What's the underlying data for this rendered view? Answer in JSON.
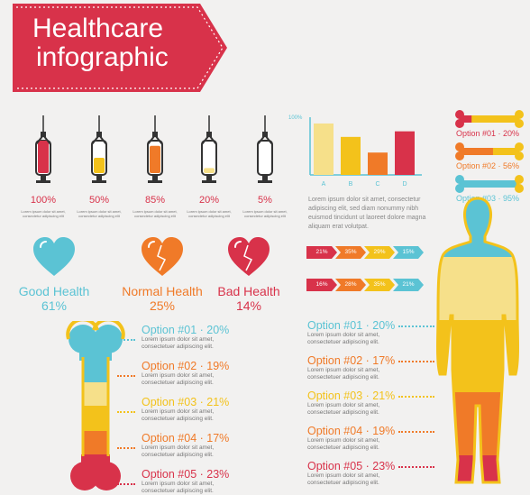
{
  "header": {
    "title_line1": "Healthcare",
    "title_line2": "infographic"
  },
  "syringes": [
    {
      "percent": "100%",
      "fill": 1.0,
      "color": "#d8324a",
      "caption": "Lorem ipsum dolor sit amet, consectetur adipiscing elit"
    },
    {
      "percent": "50%",
      "fill": 0.5,
      "color": "#f3c21b",
      "caption": "Lorem ipsum dolor sit amet, consectetur adipiscing elit"
    },
    {
      "percent": "85%",
      "fill": 0.85,
      "color": "#f07a28",
      "caption": "Lorem ipsum dolor sit amet, consectetur adipiscing elit"
    },
    {
      "percent": "20%",
      "fill": 0.2,
      "color": "#f6e08a",
      "caption": "Lorem ipsum dolor sit amet, consectetur adipiscing elit"
    },
    {
      "percent": "5%",
      "fill": 0.05,
      "color": "#ffffff",
      "caption": "Lorem ipsum dolor sit amet, consectetur adipiscing elit"
    }
  ],
  "hearts": [
    {
      "label": "Good Health",
      "value": "61%",
      "color": "#5bc3d4"
    },
    {
      "label": "Normal Health",
      "value": "25%",
      "color": "#f07a28"
    },
    {
      "label": "Bad Health",
      "value": "14%",
      "color": "#d8324a"
    }
  ],
  "chart_data": {
    "type": "bar",
    "categories": [
      "A",
      "B",
      "C",
      "D"
    ],
    "values": [
      92,
      68,
      40,
      78
    ],
    "colors": [
      "#f6e08a",
      "#f3c21b",
      "#f07a28",
      "#d8324a"
    ],
    "ylabel_top": "100%",
    "ylim": [
      0,
      100
    ]
  },
  "chart_text": "Lorem ipsum dolor sit amet, consectetur adipiscing elit, sed diam nonummy nibh euismod tincidunt ut laoreet dolore magna aliquam erat volutpat.",
  "chevron_rows": [
    [
      {
        "label": "21%",
        "color": "#d8324a"
      },
      {
        "label": "35%",
        "color": "#f07a28"
      },
      {
        "label": "29%",
        "color": "#f3c21b"
      },
      {
        "label": "15%",
        "color": "#5bc3d4"
      }
    ],
    [
      {
        "label": "16%",
        "color": "#d8324a"
      },
      {
        "label": "28%",
        "color": "#f07a28"
      },
      {
        "label": "35%",
        "color": "#f3c21b"
      },
      {
        "label": "21%",
        "color": "#5bc3d4"
      }
    ]
  ],
  "bone_legend": [
    {
      "label": "Option #01 · 20%",
      "color": "#d8324a"
    },
    {
      "label": "Option #02 · 56%",
      "color": "#f07a28"
    },
    {
      "label": "Option #03 · 95%",
      "color": "#5bc3d4"
    }
  ],
  "bone_options": [
    {
      "title": "Option #01 · 20%",
      "color": "#5bc3d4",
      "sub1": "Lorem ipsum dolor sit amet,",
      "sub2": "consectetuer adipiscing elit."
    },
    {
      "title": "Option #02 · 19%",
      "color": "#f07a28",
      "sub1": "Lorem ipsum dolor sit amet,",
      "sub2": "consectetuer adipiscing elit."
    },
    {
      "title": "Option #03 · 21%",
      "color": "#f3c21b",
      "sub1": "Lorem ipsum dolor sit amet,",
      "sub2": "consectetuer adipiscing elit."
    },
    {
      "title": "Option #04 · 17%",
      "color": "#f07a28",
      "sub1": "Lorem ipsum dolor sit amet,",
      "sub2": "consectetuer adipiscing elit."
    },
    {
      "title": "Option #05 · 23%",
      "color": "#d8324a",
      "sub1": "Lorem ipsum dolor sit amet,",
      "sub2": "consectetuer adipiscing elit."
    }
  ],
  "body_options": [
    {
      "title": "Option #01 · 20%",
      "color": "#5bc3d4",
      "sub1": "Lorem ipsum dolor sit amet,",
      "sub2": "consectetuer adipiscing elit."
    },
    {
      "title": "Option #02 · 17%",
      "color": "#f07a28",
      "sub1": "Lorem ipsum dolor sit amet,",
      "sub2": "consectetuer adipiscing elit."
    },
    {
      "title": "Option #03 · 21%",
      "color": "#f3c21b",
      "sub1": "Lorem ipsum dolor sit amet,",
      "sub2": "consectetuer adipiscing elit."
    },
    {
      "title": "Option #04 · 19%",
      "color": "#f07a28",
      "sub1": "Lorem ipsum dolor sit amet,",
      "sub2": "consectetuer adipiscing elit."
    },
    {
      "title": "Option #05 · 23%",
      "color": "#d8324a",
      "sub1": "Lorem ipsum dolor sit amet,",
      "sub2": "consectetuer adipiscing elit."
    }
  ]
}
